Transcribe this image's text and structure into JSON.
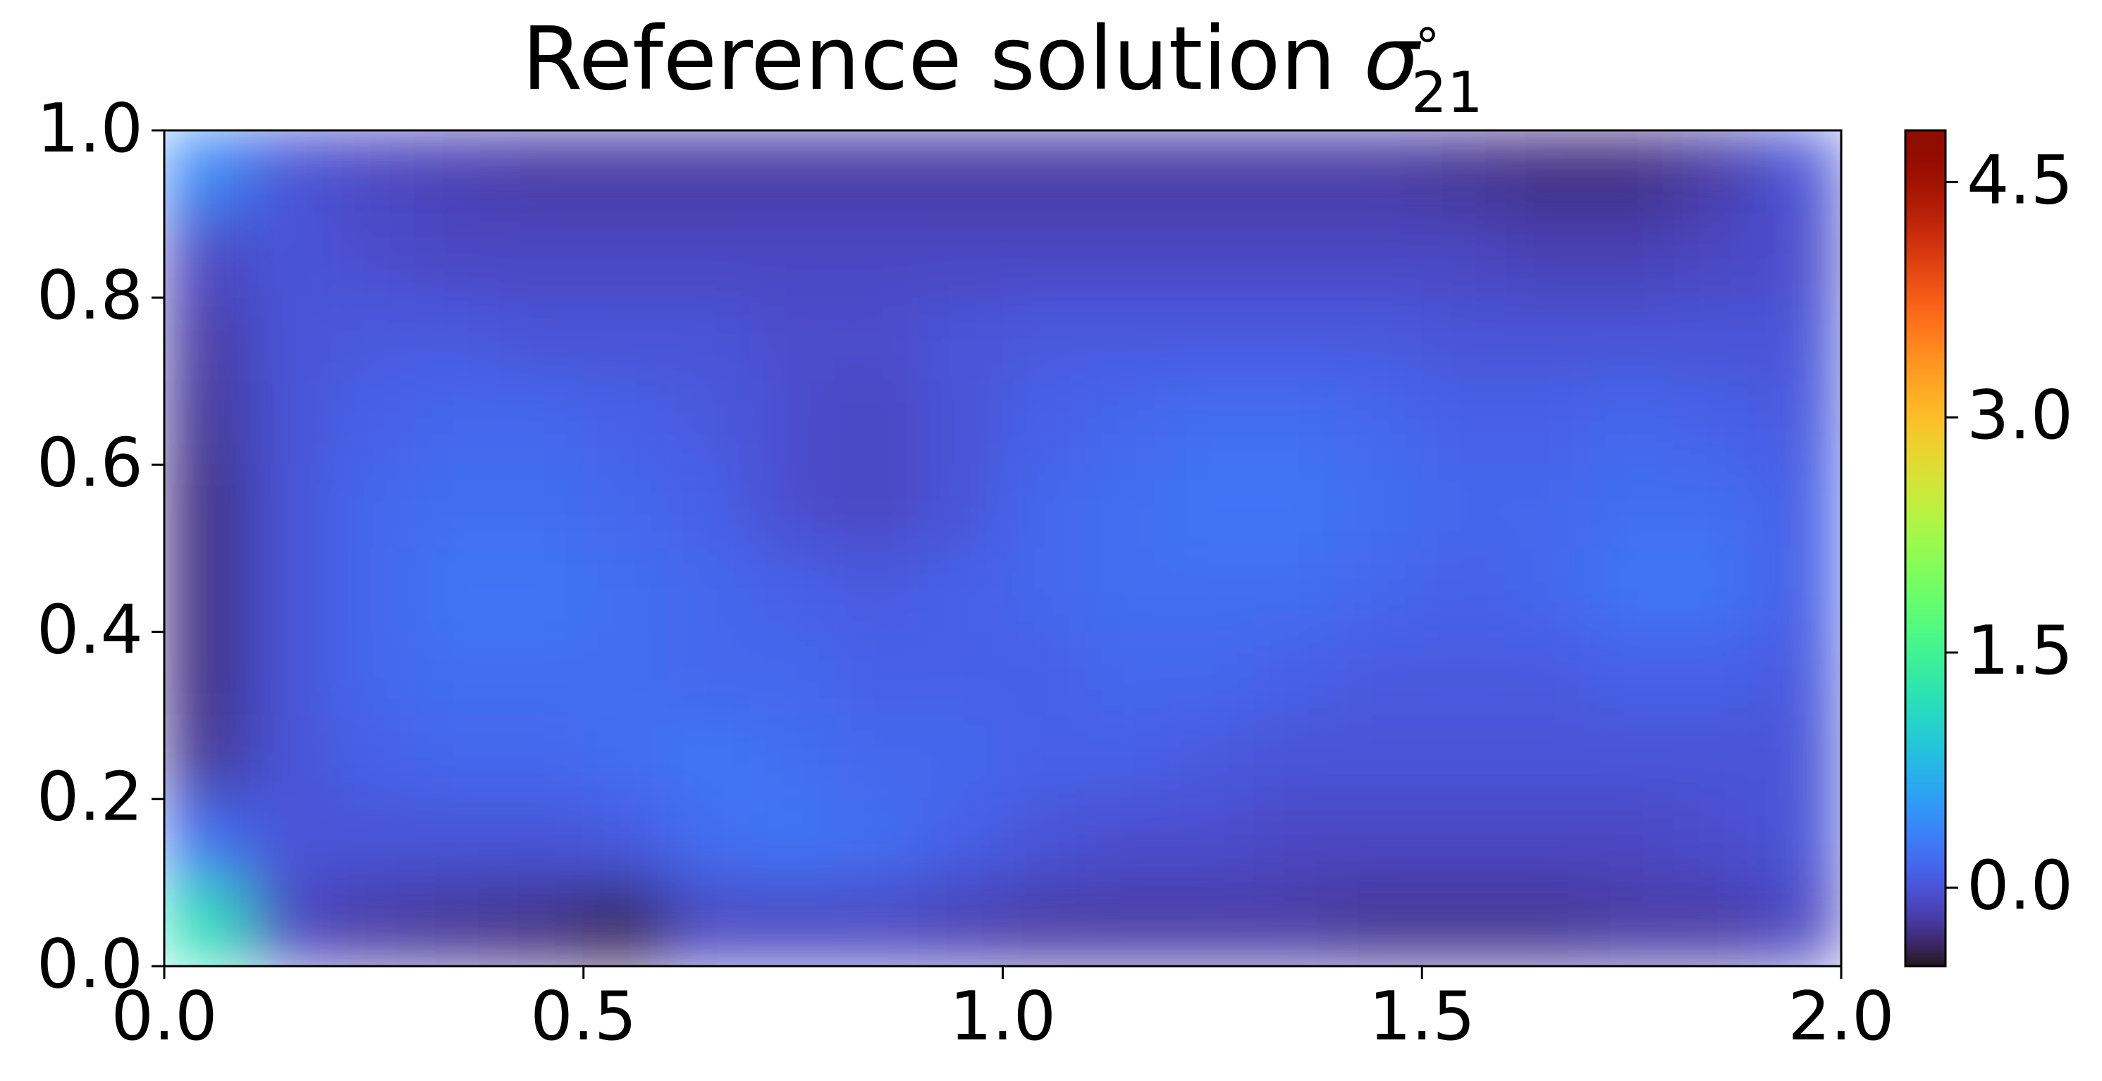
{
  "chart_data": {
    "type": "contour",
    "title": "Reference solution",
    "title_symbol": "σ",
    "title_superscript": "∘",
    "title_subscript": "21",
    "colormap": "turbo",
    "xlim": [
      0,
      2
    ],
    "ylim": [
      0,
      1
    ],
    "zlim": [
      -0.5,
      4.83
    ],
    "xticks": [
      {
        "value": 0,
        "label": "0.0"
      },
      {
        "value": 0.5,
        "label": "0.5"
      },
      {
        "value": 1,
        "label": "1.0"
      },
      {
        "value": 1.5,
        "label": "1.5"
      },
      {
        "value": 2,
        "label": "2.0"
      }
    ],
    "yticks": [
      {
        "value": 0,
        "label": "0.0"
      },
      {
        "value": 0.2,
        "label": "0.2"
      },
      {
        "value": 0.4,
        "label": "0.4"
      },
      {
        "value": 0.6,
        "label": "0.6"
      },
      {
        "value": 0.8,
        "label": "0.8"
      },
      {
        "value": 1,
        "label": "1.0"
      }
    ],
    "zticks": [
      {
        "value": 0,
        "label": "0.0"
      },
      {
        "value": 1.5,
        "label": "1.5"
      },
      {
        "value": 3,
        "label": "3.0"
      },
      {
        "value": 4.5,
        "label": "4.5"
      }
    ],
    "x": [
      0.05,
      0.15,
      0.25,
      0.35,
      0.45,
      0.55,
      0.65,
      0.75,
      0.85,
      0.95,
      1.05,
      1.15,
      1.25,
      1.35,
      1.45,
      1.55,
      1.65,
      1.75,
      1.85,
      1.95
    ],
    "y": [
      0.95,
      0.85,
      0.75,
      0.65,
      0.55,
      0.45,
      0.35,
      0.25,
      0.15,
      0.05
    ],
    "z": [
      [
        0.4,
        0.0,
        -0.1,
        -0.15,
        -0.2,
        -0.2,
        -0.2,
        -0.2,
        -0.2,
        -0.2,
        -0.2,
        -0.2,
        -0.2,
        -0.2,
        -0.2,
        -0.25,
        -0.3,
        -0.3,
        -0.2,
        0.0
      ],
      [
        -0.1,
        0.0,
        -0.05,
        -0.1,
        -0.1,
        -0.1,
        -0.1,
        -0.1,
        -0.1,
        -0.1,
        -0.1,
        -0.1,
        -0.1,
        -0.1,
        -0.1,
        -0.1,
        -0.15,
        -0.15,
        -0.1,
        -0.05
      ],
      [
        -0.2,
        0.0,
        0.05,
        0.05,
        0.0,
        0.0,
        0.0,
        -0.05,
        -0.05,
        0.0,
        0.05,
        0.05,
        0.05,
        0.05,
        0.05,
        0.0,
        0.0,
        0.0,
        0.0,
        0.0
      ],
      [
        -0.25,
        0.0,
        0.1,
        0.15,
        0.15,
        0.1,
        0.05,
        -0.05,
        -0.1,
        0.0,
        0.1,
        0.15,
        0.2,
        0.2,
        0.15,
        0.1,
        0.1,
        0.15,
        0.1,
        0.05
      ],
      [
        -0.3,
        0.0,
        0.15,
        0.2,
        0.2,
        0.15,
        0.1,
        -0.05,
        -0.1,
        0.0,
        0.15,
        0.2,
        0.25,
        0.25,
        0.2,
        0.15,
        0.15,
        0.2,
        0.2,
        0.1
      ],
      [
        -0.3,
        0.0,
        0.15,
        0.25,
        0.25,
        0.2,
        0.15,
        0.1,
        0.05,
        0.1,
        0.15,
        0.2,
        0.2,
        0.2,
        0.15,
        0.1,
        0.15,
        0.25,
        0.25,
        0.1
      ],
      [
        -0.3,
        0.0,
        0.15,
        0.2,
        0.2,
        0.2,
        0.15,
        0.15,
        0.1,
        0.1,
        0.1,
        0.15,
        0.15,
        0.1,
        0.05,
        0.05,
        0.05,
        0.1,
        0.1,
        0.05
      ],
      [
        -0.25,
        0.0,
        0.1,
        0.15,
        0.15,
        0.2,
        0.25,
        0.2,
        0.15,
        0.15,
        0.1,
        0.1,
        0.05,
        0.0,
        0.0,
        0.0,
        0.0,
        0.0,
        0.0,
        0.0
      ],
      [
        0.2,
        0.0,
        0.0,
        0.0,
        0.0,
        0.05,
        0.2,
        0.25,
        0.2,
        0.1,
        0.0,
        -0.05,
        -0.05,
        -0.1,
        -0.1,
        -0.1,
        -0.1,
        -0.1,
        -0.05,
        0.0
      ],
      [
        1.2,
        -0.1,
        -0.2,
        -0.25,
        -0.3,
        -0.4,
        -0.1,
        -0.1,
        -0.1,
        -0.15,
        -0.2,
        -0.2,
        -0.2,
        -0.2,
        -0.25,
        -0.25,
        -0.25,
        -0.2,
        -0.2,
        -0.1
      ]
    ]
  }
}
